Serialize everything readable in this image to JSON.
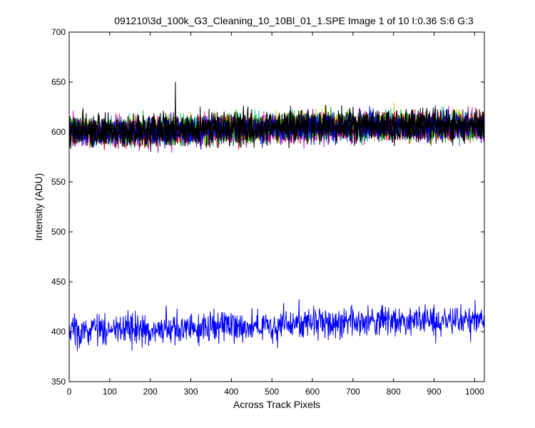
{
  "chart_data": {
    "type": "line",
    "title": "091210\\3d_100k_G3_Cleaning_10_10Bl_01_1.SPE  Image 1 of 10  I:0.36  S:6  G:3",
    "xlabel": "Across Track Pixels",
    "ylabel": "Intensity (ADU)",
    "xlim": [
      0,
      1024
    ],
    "ylim": [
      350,
      700
    ],
    "x_ticks": [
      0,
      100,
      200,
      300,
      400,
      500,
      600,
      700,
      800,
      900,
      1000
    ],
    "y_ticks": [
      350,
      400,
      450,
      500,
      550,
      600,
      650,
      700
    ],
    "grid": false,
    "legend": "none",
    "series": [
      {
        "color": "#ff0000",
        "noise": 7,
        "trend": [
          [
            0,
            598
          ],
          [
            200,
            599
          ],
          [
            400,
            601
          ],
          [
            600,
            604
          ],
          [
            800,
            604
          ],
          [
            1024,
            605
          ]
        ]
      },
      {
        "color": "#ff00ff",
        "noise": 7,
        "trend": [
          [
            0,
            599
          ],
          [
            200,
            600
          ],
          [
            400,
            602
          ],
          [
            600,
            604
          ],
          [
            800,
            605
          ],
          [
            1024,
            606
          ]
        ]
      },
      {
        "color": "#00bfbf",
        "noise": 7,
        "trend": [
          [
            0,
            601
          ],
          [
            200,
            601
          ],
          [
            400,
            603
          ],
          [
            600,
            606
          ],
          [
            800,
            606
          ],
          [
            1024,
            607
          ]
        ]
      },
      {
        "color": "#00c000",
        "noise": 7,
        "trend": [
          [
            0,
            600
          ],
          [
            200,
            600
          ],
          [
            400,
            602
          ],
          [
            600,
            605
          ],
          [
            800,
            605
          ],
          [
            1024,
            606
          ]
        ]
      },
      {
        "color": "#bfbf00",
        "noise": 7,
        "trend": [
          [
            0,
            602
          ],
          [
            200,
            602
          ],
          [
            400,
            604
          ],
          [
            600,
            607
          ],
          [
            800,
            607
          ],
          [
            1024,
            608
          ]
        ]
      },
      {
        "color": "#800080",
        "noise": 7,
        "trend": [
          [
            0,
            599
          ],
          [
            200,
            600
          ],
          [
            400,
            602
          ],
          [
            600,
            604
          ],
          [
            800,
            604
          ],
          [
            1024,
            605
          ]
        ]
      },
      {
        "color": "#0000ff",
        "noise": 7,
        "trend": [
          [
            0,
            600
          ],
          [
            200,
            601
          ],
          [
            400,
            602
          ],
          [
            600,
            605
          ],
          [
            800,
            605
          ],
          [
            1024,
            606
          ]
        ]
      },
      {
        "color": "#000000",
        "noise": 8,
        "trend": [
          [
            0,
            602
          ],
          [
            200,
            602
          ],
          [
            400,
            604
          ],
          [
            600,
            607
          ],
          [
            800,
            607
          ],
          [
            1024,
            608
          ]
        ]
      },
      {
        "color": "#000000",
        "noise": 8,
        "trend": [
          [
            0,
            601
          ],
          [
            200,
            601
          ],
          [
            400,
            603
          ],
          [
            600,
            606
          ],
          [
            800,
            606
          ],
          [
            1024,
            607
          ]
        ]
      },
      {
        "color": "#0000ff",
        "noise": 8,
        "trend": [
          [
            0,
            401
          ],
          [
            100,
            402
          ],
          [
            200,
            403
          ],
          [
            300,
            404
          ],
          [
            400,
            406
          ],
          [
            500,
            407
          ],
          [
            600,
            409
          ],
          [
            700,
            409
          ],
          [
            800,
            410
          ],
          [
            900,
            410
          ],
          [
            1024,
            411
          ]
        ]
      }
    ],
    "annotations": [
      {
        "x": 262,
        "y": 650
      }
    ]
  }
}
